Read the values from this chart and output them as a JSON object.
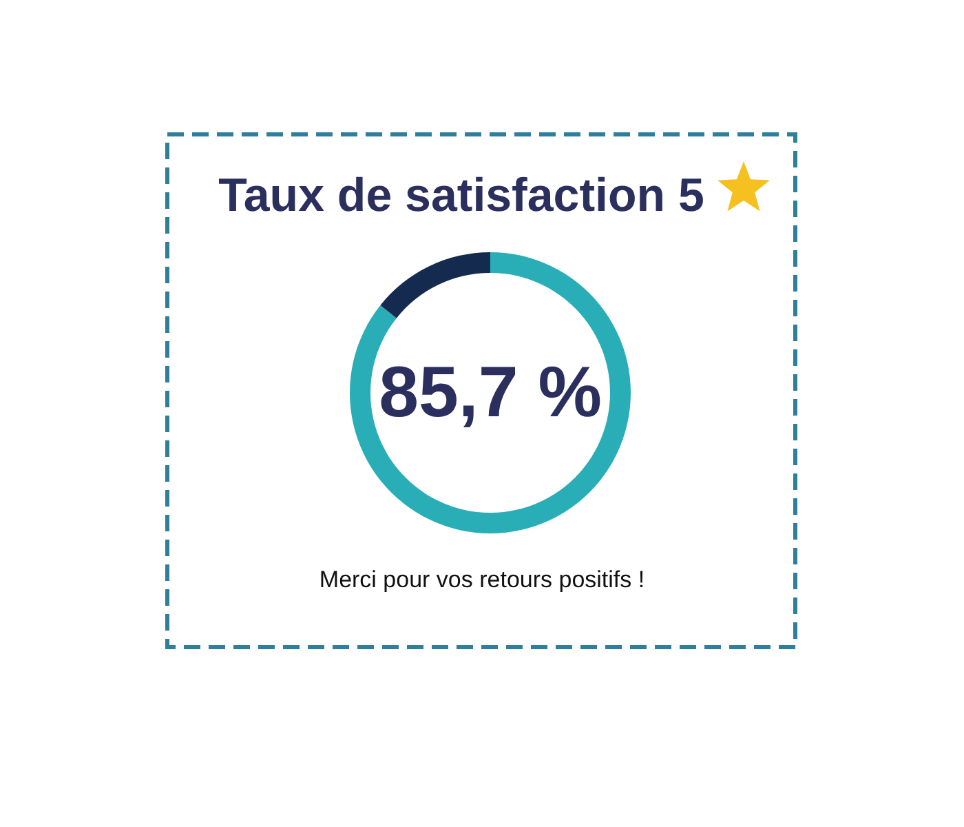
{
  "chart_data": {
    "type": "donut",
    "title": "Taux de satisfaction 5",
    "categories": [
      null,
      null
    ],
    "values": [
      85.7,
      14.3
    ],
    "colors": [
      "#29aeb8",
      "#142b4f"
    ],
    "value_labels": [
      "85,7 %",
      null
    ],
    "annotations": [
      "Merci pour vos retours positifs !"
    ]
  }
}
